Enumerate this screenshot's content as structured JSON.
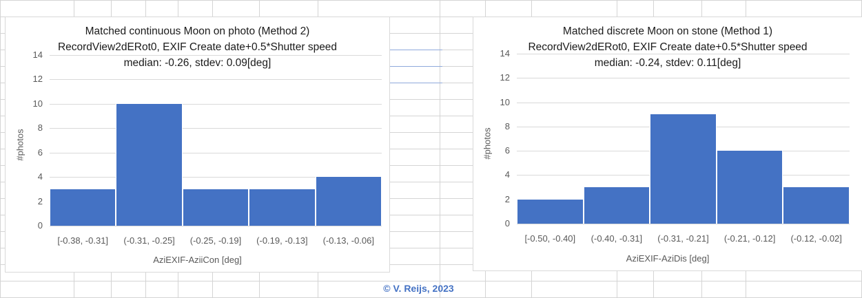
{
  "footer": {
    "copyright": "© V. Reijs, 2023"
  },
  "colors": {
    "bar": "#4472c4",
    "copyright": "#4472c4",
    "gridline": "#d9d9d9"
  },
  "chart_data": [
    {
      "type": "bar",
      "title": "Matched continuous Moon on photo (Method 2)",
      "subtitle": "RecordView2dERot0, EXIF Create date+0.5*Shutter  speed",
      "subtitle2": "median: -0.26, stdev: 0.09[deg]",
      "xlabel": "AziEXIF-AziiCon [deg]",
      "ylabel": "#photos",
      "categories": [
        "[-0.38, -0.31]",
        "(-0.31, -0.25]",
        "(-0.25, -0.19]",
        "(-0.19, -0.13]",
        "(-0.13, -0.06]"
      ],
      "values": [
        3,
        10,
        3,
        3,
        4
      ],
      "yticks": [
        "0",
        "2",
        "4",
        "6",
        "8",
        "10",
        "12",
        "14"
      ],
      "ylim": [
        0,
        14
      ],
      "grid": true,
      "legend": "none"
    },
    {
      "type": "bar",
      "title": "Matched discrete Moon on stone (Method 1)",
      "subtitle": "RecordView2dERot0, EXIF Create date+0.5*Shutter  speed",
      "subtitle2": "median: -0.24, stdev: 0.11[deg]",
      "xlabel": "AziEXIF-AziDis [deg]",
      "ylabel": "#photos",
      "categories": [
        "[-0.50, -0.40]",
        "(-0.40, -0.31]",
        "(-0.31, -0.21]",
        "(-0.21, -0.12]",
        "(-0.12, -0.02]"
      ],
      "values": [
        2,
        3,
        9,
        6,
        3
      ],
      "yticks": [
        "0",
        "2",
        "4",
        "6",
        "8",
        "10",
        "12",
        "14"
      ],
      "ylim": [
        0,
        14
      ],
      "grid": true,
      "legend": "none"
    }
  ]
}
